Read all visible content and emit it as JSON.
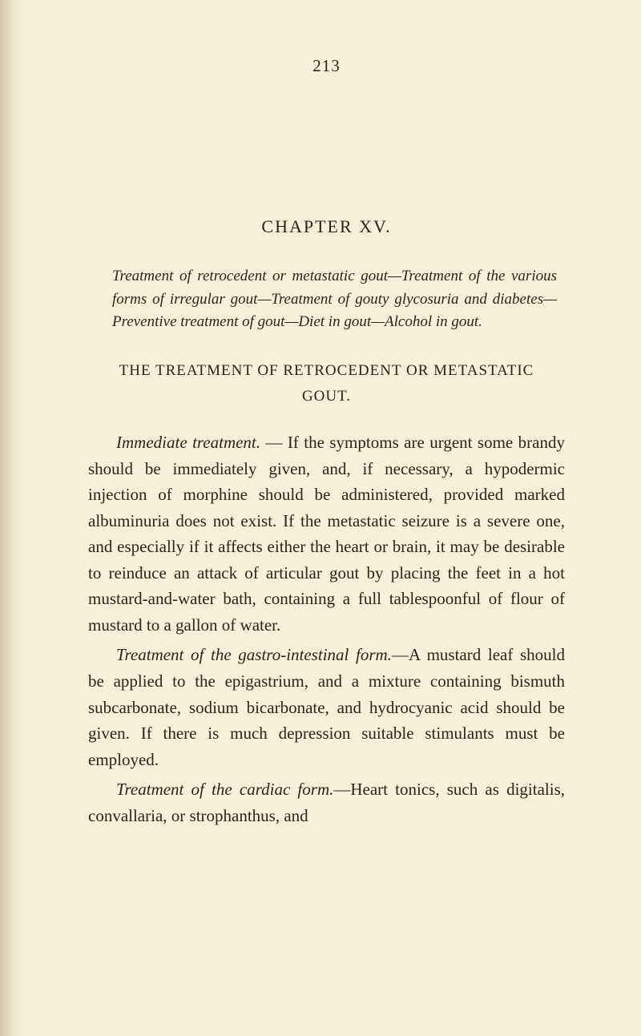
{
  "page_number": "213",
  "chapter_title": "CHAPTER XV.",
  "chapter_summary": "Treatment of retrocedent or metastatic gout—Treatment of the various forms of irregular gout—Treatment of gouty glycosuria and diabetes—Preventive treatment of gout—Diet in gout—Alcohol in gout.",
  "section_heading": "THE TREATMENT OF RETROCEDENT OR METASTATIC GOUT.",
  "para1_lead": "Immediate treatment.",
  "para1_text": " — If the symptoms are urgent some brandy should be immediately given, and, if necessary, a hypodermic injection of morphine should be administered, provided marked albuminuria does not exist. If the metastatic seizure is a severe one, and especially if it affects either the heart or brain, it may be desirable to reinduce an attack of articular gout by placing the feet in a hot mustard-and-water bath, containing a full tablespoonful of flour of mustard to a gallon of water.",
  "para2_lead": "Treatment of the gastro-intestinal form.",
  "para2_text": "—A mustard leaf should be applied to the epigastrium, and a mixture containing bismuth subcarbonate, sodium bicarbonate, and hydrocyanic acid should be given. If there is much depression suitable stimulants must be employed.",
  "para3_lead": "Treatment of the cardiac form.",
  "para3_text": "—Heart tonics, such as digitalis, convallaria, or strophanthus, and",
  "colors": {
    "background": "#f5f0d8",
    "text": "#2a2618"
  },
  "typography": {
    "body_fontsize": 21,
    "heading_fontsize": 22,
    "summary_fontsize": 19,
    "line_height": 1.55
  }
}
